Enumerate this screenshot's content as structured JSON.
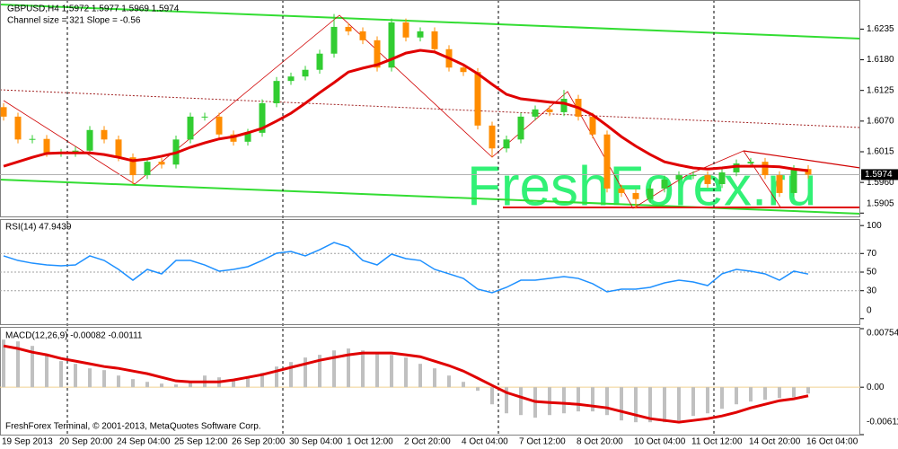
{
  "chart_data": [
    {
      "type": "candlestick",
      "title": "GBPUSD,H4  1.5972 1.5977 1.5969 1.5974",
      "subtitle": "Channel size = 321 Slope = -0.56",
      "watermark": "FreshForex.ru",
      "categories": [
        "19 Sep 2013",
        null,
        null,
        null,
        "20 Sep 20:00",
        null,
        null,
        null,
        "24 Sep 04:00",
        null,
        null,
        null,
        "25 Sep 12:00",
        null,
        null,
        null,
        "26 Sep 20:00",
        null,
        null,
        null,
        "30 Sep 04:00",
        null,
        null,
        null,
        "1 Oct 12:00",
        null,
        null,
        null,
        "2 Oct 20:00",
        null,
        null,
        null,
        "4 Oct 04:00",
        null,
        null,
        null,
        "7 Oct 12:00",
        null,
        null,
        null,
        "8 Oct 20:00",
        null,
        null,
        null,
        "10 Oct 04:00",
        null,
        null,
        null,
        "11 Oct 12:00",
        null,
        null,
        null,
        "14 Oct 20:00",
        null,
        null,
        null,
        "16 Oct 04:00"
      ],
      "open": [
        1.6095,
        1.6078,
        1.6037,
        1.6038,
        1.6013,
        1.6013,
        1.6017,
        1.6054,
        1.6037,
        1.6005,
        1.5973,
        1.5997,
        1.5992,
        1.6037,
        1.6078,
        1.6078,
        1.6046,
        1.6033,
        1.6049,
        1.6102,
        1.6142,
        1.615,
        1.6162,
        1.6191,
        1.6239,
        1.6231,
        1.6215,
        1.6166,
        1.6247,
        1.622,
        1.6231,
        1.6199,
        1.6166,
        1.6158,
        1.6062,
        1.6021,
        1.6037,
        1.6078,
        1.6091,
        1.6086,
        1.611,
        1.6078,
        1.6046,
        1.5949,
        1.5941,
        1.593,
        1.5949,
        1.5965,
        1.5973,
        1.5973,
        1.5957,
        1.5978,
        1.5994,
        1.5997,
        1.5973,
        1.5941,
        1.5984
      ],
      "high": [
        1.6102,
        1.6085,
        1.6045,
        1.6045,
        1.602,
        1.6024,
        1.6061,
        1.6061,
        1.6044,
        1.6012,
        1.6004,
        1.6004,
        1.6044,
        1.6085,
        1.6085,
        1.6085,
        1.6053,
        1.6056,
        1.6109,
        1.6149,
        1.6157,
        1.6169,
        1.6198,
        1.6262,
        1.6246,
        1.6238,
        1.6222,
        1.6254,
        1.6254,
        1.6238,
        1.6238,
        1.6206,
        1.6173,
        1.6165,
        1.6069,
        1.6044,
        1.6085,
        1.6098,
        1.6098,
        1.6126,
        1.6117,
        1.6085,
        1.6053,
        1.5956,
        1.5948,
        1.5956,
        1.5972,
        1.598,
        1.598,
        1.598,
        1.5985,
        1.6001,
        1.6004,
        1.6004,
        1.598,
        1.5991,
        1.5991
      ],
      "low": [
        1.6071,
        1.603,
        1.603,
        1.6006,
        1.6006,
        1.6006,
        1.601,
        1.603,
        1.5998,
        1.5957,
        1.5966,
        1.5985,
        1.5985,
        1.603,
        1.6071,
        1.6039,
        1.6026,
        1.6026,
        1.6042,
        1.6095,
        1.6135,
        1.6143,
        1.6155,
        1.6184,
        1.6224,
        1.6208,
        1.6159,
        1.6159,
        1.6213,
        1.6213,
        1.6192,
        1.6159,
        1.6151,
        1.6055,
        1.6005,
        1.6014,
        1.603,
        1.6071,
        1.6079,
        1.6079,
        1.6071,
        1.6039,
        1.5942,
        1.5934,
        1.5913,
        1.5923,
        1.5942,
        1.5958,
        1.5966,
        1.595,
        1.595,
        1.5971,
        1.5987,
        1.5966,
        1.5934,
        1.5934,
        1.5967
      ],
      "close": [
        1.6078,
        1.6037,
        1.6038,
        1.6013,
        1.6013,
        1.6017,
        1.6054,
        1.6037,
        1.6005,
        1.5973,
        1.5997,
        1.5992,
        1.6037,
        1.6078,
        1.6078,
        1.6046,
        1.6033,
        1.6049,
        1.6102,
        1.6142,
        1.615,
        1.6162,
        1.6191,
        1.6239,
        1.6231,
        1.6215,
        1.6166,
        1.6247,
        1.622,
        1.6231,
        1.6199,
        1.6166,
        1.6158,
        1.6062,
        1.6021,
        1.6037,
        1.6078,
        1.6091,
        1.6086,
        1.611,
        1.6078,
        1.6046,
        1.5949,
        1.5941,
        1.593,
        1.5949,
        1.5965,
        1.5973,
        1.5973,
        1.5957,
        1.5978,
        1.5994,
        1.5997,
        1.5973,
        1.5941,
        1.5984,
        1.5974
      ],
      "up_color": "#32cd32",
      "down_color": "#ff8c00",
      "ma_values": [
        1.5989,
        1.5997,
        1.6005,
        1.6012,
        1.6013,
        1.6013,
        1.6013,
        1.601,
        1.6005,
        1.5999,
        1.6002,
        1.6007,
        1.6013,
        1.6023,
        1.6031,
        1.6038,
        1.6042,
        1.6049,
        1.6057,
        1.607,
        1.6084,
        1.6102,
        1.6121,
        1.6139,
        1.6158,
        1.6165,
        1.6171,
        1.6181,
        1.6192,
        1.6197,
        1.6194,
        1.6183,
        1.6171,
        1.6155,
        1.6136,
        1.6118,
        1.611,
        1.6107,
        1.6104,
        1.6102,
        1.6094,
        1.6081,
        1.6062,
        1.6042,
        1.6025,
        1.601,
        1.5997,
        1.5991,
        1.5986,
        1.5984,
        1.5986,
        1.5989,
        1.5989,
        1.5989,
        1.5988,
        1.5984,
        1.5981
      ],
      "ma_color": "#e00000",
      "last_price": 1.5974,
      "ylim": [
        1.5899,
        1.6284
      ],
      "yticks": [
        1.6235,
        {
          "value": 1.618,
          "label": "1.6180"
        },
        1.6125,
        {
          "value": 1.607,
          "label": "1.6070"
        },
        1.6015,
        {
          "value": 1.596,
          "label": "1.5960"
        },
        1.5905
      ]
    },
    {
      "type": "line",
      "title": "RSI(14) 47.9439",
      "values": [
        67.4,
        62.5,
        59.6,
        57.7,
        56.8,
        57.7,
        67.4,
        62.5,
        52.9,
        41.3,
        52.9,
        48.1,
        62.5,
        62.5,
        57.7,
        51.0,
        52.9,
        55.8,
        62.5,
        70.3,
        72.2,
        67.4,
        74.1,
        81.8,
        77.0,
        62.5,
        57.7,
        69.3,
        64.5,
        62.5,
        52.9,
        48.1,
        43.2,
        31.7,
        27.8,
        33.6,
        41.3,
        41.3,
        43.2,
        45.2,
        43.2,
        37.5,
        28.8,
        31.7,
        31.7,
        33.6,
        38.4,
        41.3,
        39.4,
        35.5,
        48.1,
        52.9,
        51.0,
        48.1,
        41.3,
        51.0,
        47.9
      ],
      "color": "#1e90ff",
      "levels": [
        70,
        50,
        30
      ],
      "ylim": [
        -5,
        105
      ],
      "yticks": [
        100,
        70,
        50,
        30,
        0
      ]
    },
    {
      "type": "macd",
      "title": "MACD(12,26,9) -0.00082 -0.00111",
      "values": [
        0.00613,
        0.0059,
        0.00532,
        0.00417,
        0.00336,
        0.00301,
        0.00243,
        0.0022,
        0.0015,
        0.00104,
        0.00069,
        0.00046,
        0.00035,
        0.00069,
        0.0015,
        0.00127,
        0.00104,
        0.00127,
        0.00185,
        0.00266,
        0.00324,
        0.00382,
        0.00417,
        0.00474,
        0.00498,
        0.00474,
        0.00451,
        0.00417,
        0.00382,
        0.00301,
        0.00243,
        0.0015,
        0.00069,
        -0.00046,
        -0.0022,
        -0.00336,
        -0.00359,
        -0.00393,
        -0.00359,
        -0.00336,
        -0.00312,
        -0.00312,
        -0.00359,
        -0.00428,
        -0.00451,
        -0.00451,
        -0.00451,
        -0.00428,
        -0.0037,
        -0.00336,
        -0.00278,
        -0.0022,
        -0.00185,
        -0.00162,
        -0.00139,
        -0.00127,
        -0.00082
      ],
      "color": "#c0c0c0",
      "signal": [
        0.00532,
        0.00498,
        0.00451,
        0.00417,
        0.0037,
        0.00336,
        0.00301,
        0.00266,
        0.00243,
        0.00208,
        0.00174,
        0.00127,
        0.00081,
        0.00069,
        0.00069,
        0.00069,
        0.00093,
        0.00127,
        0.00162,
        0.00208,
        0.00255,
        0.00301,
        0.00347,
        0.00382,
        0.00417,
        0.0044,
        0.0044,
        0.0044,
        0.00417,
        0.00393,
        0.00336,
        0.00278,
        0.00208,
        0.00116,
        0.00023,
        -0.00069,
        -0.00127,
        -0.00185,
        -0.00197,
        -0.00208,
        -0.0022,
        -0.00243,
        -0.00266,
        -0.00312,
        -0.00359,
        -0.00405,
        -0.00428,
        -0.00451,
        -0.00428,
        -0.00405,
        -0.0037,
        -0.00324,
        -0.00266,
        -0.0022,
        -0.00174,
        -0.0015,
        -0.00111
      ],
      "signal_color": "#e00000",
      "zero_color": "#f0d090",
      "ylim": [
        -0.00611,
        0.00754
      ],
      "yticks": [
        0.00754,
        {
          "value": 0,
          "label": "0.00"
        },
        -0.00611
      ]
    }
  ],
  "footer": "FreshForex Terminal, © 2001-2013, MetaQuotes Software Corp."
}
